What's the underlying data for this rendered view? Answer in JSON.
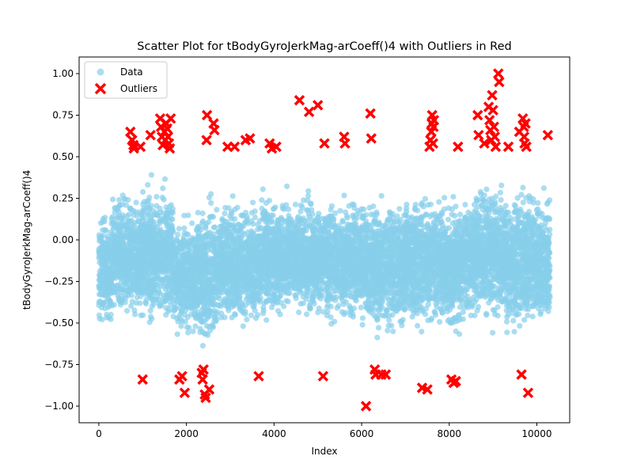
{
  "chart_data": {
    "type": "scatter",
    "title": "Scatter Plot for tBodyGyroJerkMag-arCoeff()4 with Outliers in Red",
    "xlabel": "Index",
    "ylabel": "tBodyGyroJerkMag-arCoeff()4",
    "xlim": [
      -450,
      10750
    ],
    "ylim": [
      -1.1,
      1.1
    ],
    "x_ticks": [
      0,
      2000,
      4000,
      6000,
      8000,
      10000
    ],
    "x_tick_labels": [
      "0",
      "2000",
      "4000",
      "6000",
      "8000",
      "10000"
    ],
    "y_ticks": [
      -1.0,
      -0.75,
      -0.5,
      -0.25,
      0.0,
      0.25,
      0.5,
      0.75,
      1.0
    ],
    "y_tick_labels": [
      "−1.00",
      "−0.75",
      "−0.50",
      "−0.25",
      "0.00",
      "0.25",
      "0.50",
      "0.75",
      "1.00"
    ],
    "grid": false,
    "legend_position": "top-left",
    "legend": [
      {
        "label": "Data",
        "marker": "circle",
        "color": "#87ceeb"
      },
      {
        "label": "Outliers",
        "marker": "x",
        "color": "#ff0000"
      }
    ],
    "data_cloud": {
      "x_range": [
        0,
        10299
      ],
      "bands": [
        {
          "x": [
            0,
            300
          ],
          "y": [
            -0.6,
            0.35
          ]
        },
        {
          "x": [
            300,
            1000
          ],
          "y": [
            -0.55,
            0.45
          ]
        },
        {
          "x": [
            1000,
            1700
          ],
          "y": [
            -0.6,
            0.55
          ]
        },
        {
          "x": [
            1700,
            2200
          ],
          "y": [
            -0.65,
            0.3
          ]
        },
        {
          "x": [
            2200,
            2700
          ],
          "y": [
            -0.75,
            0.45
          ]
        },
        {
          "x": [
            2700,
            3700
          ],
          "y": [
            -0.6,
            0.4
          ]
        },
        {
          "x": [
            3700,
            4500
          ],
          "y": [
            -0.55,
            0.45
          ]
        },
        {
          "x": [
            4500,
            5200
          ],
          "y": [
            -0.55,
            0.45
          ]
        },
        {
          "x": [
            5200,
            6000
          ],
          "y": [
            -0.6,
            0.45
          ]
        },
        {
          "x": [
            6000,
            7000
          ],
          "y": [
            -0.65,
            0.45
          ]
        },
        {
          "x": [
            7000,
            7800
          ],
          "y": [
            -0.65,
            0.5
          ]
        },
        {
          "x": [
            7800,
            8500
          ],
          "y": [
            -0.65,
            0.45
          ]
        },
        {
          "x": [
            8500,
            9300
          ],
          "y": [
            -0.6,
            0.55
          ]
        },
        {
          "x": [
            9300,
            10300
          ],
          "y": [
            -0.65,
            0.5
          ]
        }
      ]
    },
    "outliers": [
      {
        "x": 720,
        "y": 0.65
      },
      {
        "x": 760,
        "y": 0.6
      },
      {
        "x": 790,
        "y": 0.57
      },
      {
        "x": 800,
        "y": 0.55
      },
      {
        "x": 950,
        "y": 0.56
      },
      {
        "x": 1000,
        "y": -0.84
      },
      {
        "x": 1180,
        "y": 0.63
      },
      {
        "x": 1400,
        "y": 0.73
      },
      {
        "x": 1420,
        "y": 0.68
      },
      {
        "x": 1440,
        "y": 0.62
      },
      {
        "x": 1460,
        "y": 0.57
      },
      {
        "x": 1500,
        "y": 0.65
      },
      {
        "x": 1520,
        "y": 0.6
      },
      {
        "x": 1540,
        "y": 0.7
      },
      {
        "x": 1560,
        "y": 0.67
      },
      {
        "x": 1580,
        "y": 0.62
      },
      {
        "x": 1600,
        "y": 0.58
      },
      {
        "x": 1620,
        "y": 0.55
      },
      {
        "x": 1640,
        "y": 0.73
      },
      {
        "x": 1840,
        "y": -0.84
      },
      {
        "x": 1900,
        "y": -0.82
      },
      {
        "x": 1960,
        "y": -0.92
      },
      {
        "x": 2350,
        "y": -0.8
      },
      {
        "x": 2370,
        "y": -0.84
      },
      {
        "x": 2390,
        "y": -0.78
      },
      {
        "x": 2420,
        "y": -0.93
      },
      {
        "x": 2440,
        "y": -0.95
      },
      {
        "x": 2460,
        "y": 0.6
      },
      {
        "x": 2470,
        "y": 0.75
      },
      {
        "x": 2520,
        "y": -0.9
      },
      {
        "x": 2620,
        "y": 0.7
      },
      {
        "x": 2640,
        "y": 0.66
      },
      {
        "x": 2940,
        "y": 0.56
      },
      {
        "x": 3100,
        "y": 0.56
      },
      {
        "x": 3350,
        "y": 0.6
      },
      {
        "x": 3450,
        "y": 0.61
      },
      {
        "x": 3650,
        "y": -0.82
      },
      {
        "x": 3900,
        "y": 0.58
      },
      {
        "x": 3950,
        "y": 0.55
      },
      {
        "x": 4050,
        "y": 0.56
      },
      {
        "x": 4580,
        "y": 0.84
      },
      {
        "x": 4800,
        "y": 0.77
      },
      {
        "x": 5000,
        "y": 0.81
      },
      {
        "x": 5120,
        "y": -0.82
      },
      {
        "x": 5150,
        "y": 0.58
      },
      {
        "x": 5600,
        "y": 0.62
      },
      {
        "x": 5620,
        "y": 0.58
      },
      {
        "x": 6100,
        "y": -1.0
      },
      {
        "x": 6200,
        "y": 0.76
      },
      {
        "x": 6220,
        "y": 0.61
      },
      {
        "x": 6300,
        "y": -0.78
      },
      {
        "x": 6320,
        "y": -0.81
      },
      {
        "x": 6450,
        "y": -0.81
      },
      {
        "x": 6550,
        "y": -0.81
      },
      {
        "x": 7380,
        "y": -0.89
      },
      {
        "x": 7500,
        "y": -0.9
      },
      {
        "x": 7550,
        "y": 0.56
      },
      {
        "x": 7570,
        "y": 0.6
      },
      {
        "x": 7590,
        "y": 0.65
      },
      {
        "x": 7600,
        "y": 0.7
      },
      {
        "x": 7610,
        "y": 0.75
      },
      {
        "x": 7630,
        "y": 0.58
      },
      {
        "x": 7640,
        "y": 0.68
      },
      {
        "x": 7650,
        "y": 0.72
      },
      {
        "x": 8050,
        "y": -0.84
      },
      {
        "x": 8100,
        "y": -0.86
      },
      {
        "x": 8150,
        "y": -0.85
      },
      {
        "x": 8200,
        "y": 0.56
      },
      {
        "x": 8650,
        "y": 0.75
      },
      {
        "x": 8670,
        "y": 0.63
      },
      {
        "x": 8800,
        "y": 0.58
      },
      {
        "x": 8900,
        "y": 0.8
      },
      {
        "x": 8920,
        "y": 0.72
      },
      {
        "x": 8940,
        "y": 0.66
      },
      {
        "x": 8960,
        "y": 0.6
      },
      {
        "x": 8980,
        "y": 0.87
      },
      {
        "x": 9000,
        "y": 0.78
      },
      {
        "x": 9020,
        "y": 0.68
      },
      {
        "x": 9040,
        "y": 0.62
      },
      {
        "x": 9060,
        "y": 0.56
      },
      {
        "x": 9120,
        "y": 1.0
      },
      {
        "x": 9140,
        "y": 0.95
      },
      {
        "x": 9350,
        "y": 0.56
      },
      {
        "x": 9600,
        "y": 0.65
      },
      {
        "x": 9650,
        "y": -0.81
      },
      {
        "x": 9680,
        "y": 0.73
      },
      {
        "x": 9700,
        "y": 0.68
      },
      {
        "x": 9710,
        "y": 0.62
      },
      {
        "x": 9720,
        "y": 0.58
      },
      {
        "x": 9740,
        "y": 0.7
      },
      {
        "x": 9760,
        "y": 0.56
      },
      {
        "x": 9800,
        "y": -0.92
      },
      {
        "x": 10250,
        "y": 0.63
      }
    ]
  }
}
